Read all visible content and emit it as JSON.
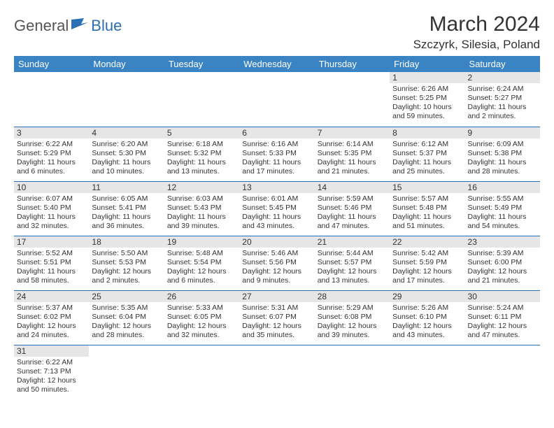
{
  "logo": {
    "part1": "General",
    "part2": "Blue"
  },
  "title": "March 2024",
  "location": "Szczyrk, Silesia, Poland",
  "colors": {
    "header_bg": "#3b84c4",
    "header_fg": "#ffffff",
    "daynum_bg": "#e6e6e6",
    "border": "#2b6fb5",
    "logo_accent": "#2b6fb5"
  },
  "weekdays": [
    "Sunday",
    "Monday",
    "Tuesday",
    "Wednesday",
    "Thursday",
    "Friday",
    "Saturday"
  ],
  "first_weekday_index": 5,
  "days": [
    {
      "n": 1,
      "sunrise": "6:26 AM",
      "sunset": "5:25 PM",
      "daylight": "10 hours and 59 minutes."
    },
    {
      "n": 2,
      "sunrise": "6:24 AM",
      "sunset": "5:27 PM",
      "daylight": "11 hours and 2 minutes."
    },
    {
      "n": 3,
      "sunrise": "6:22 AM",
      "sunset": "5:29 PM",
      "daylight": "11 hours and 6 minutes."
    },
    {
      "n": 4,
      "sunrise": "6:20 AM",
      "sunset": "5:30 PM",
      "daylight": "11 hours and 10 minutes."
    },
    {
      "n": 5,
      "sunrise": "6:18 AM",
      "sunset": "5:32 PM",
      "daylight": "11 hours and 13 minutes."
    },
    {
      "n": 6,
      "sunrise": "6:16 AM",
      "sunset": "5:33 PM",
      "daylight": "11 hours and 17 minutes."
    },
    {
      "n": 7,
      "sunrise": "6:14 AM",
      "sunset": "5:35 PM",
      "daylight": "11 hours and 21 minutes."
    },
    {
      "n": 8,
      "sunrise": "6:12 AM",
      "sunset": "5:37 PM",
      "daylight": "11 hours and 25 minutes."
    },
    {
      "n": 9,
      "sunrise": "6:09 AM",
      "sunset": "5:38 PM",
      "daylight": "11 hours and 28 minutes."
    },
    {
      "n": 10,
      "sunrise": "6:07 AM",
      "sunset": "5:40 PM",
      "daylight": "11 hours and 32 minutes."
    },
    {
      "n": 11,
      "sunrise": "6:05 AM",
      "sunset": "5:41 PM",
      "daylight": "11 hours and 36 minutes."
    },
    {
      "n": 12,
      "sunrise": "6:03 AM",
      "sunset": "5:43 PM",
      "daylight": "11 hours and 39 minutes."
    },
    {
      "n": 13,
      "sunrise": "6:01 AM",
      "sunset": "5:45 PM",
      "daylight": "11 hours and 43 minutes."
    },
    {
      "n": 14,
      "sunrise": "5:59 AM",
      "sunset": "5:46 PM",
      "daylight": "11 hours and 47 minutes."
    },
    {
      "n": 15,
      "sunrise": "5:57 AM",
      "sunset": "5:48 PM",
      "daylight": "11 hours and 51 minutes."
    },
    {
      "n": 16,
      "sunrise": "5:55 AM",
      "sunset": "5:49 PM",
      "daylight": "11 hours and 54 minutes."
    },
    {
      "n": 17,
      "sunrise": "5:52 AM",
      "sunset": "5:51 PM",
      "daylight": "11 hours and 58 minutes."
    },
    {
      "n": 18,
      "sunrise": "5:50 AM",
      "sunset": "5:53 PM",
      "daylight": "12 hours and 2 minutes."
    },
    {
      "n": 19,
      "sunrise": "5:48 AM",
      "sunset": "5:54 PM",
      "daylight": "12 hours and 6 minutes."
    },
    {
      "n": 20,
      "sunrise": "5:46 AM",
      "sunset": "5:56 PM",
      "daylight": "12 hours and 9 minutes."
    },
    {
      "n": 21,
      "sunrise": "5:44 AM",
      "sunset": "5:57 PM",
      "daylight": "12 hours and 13 minutes."
    },
    {
      "n": 22,
      "sunrise": "5:42 AM",
      "sunset": "5:59 PM",
      "daylight": "12 hours and 17 minutes."
    },
    {
      "n": 23,
      "sunrise": "5:39 AM",
      "sunset": "6:00 PM",
      "daylight": "12 hours and 21 minutes."
    },
    {
      "n": 24,
      "sunrise": "5:37 AM",
      "sunset": "6:02 PM",
      "daylight": "12 hours and 24 minutes."
    },
    {
      "n": 25,
      "sunrise": "5:35 AM",
      "sunset": "6:04 PM",
      "daylight": "12 hours and 28 minutes."
    },
    {
      "n": 26,
      "sunrise": "5:33 AM",
      "sunset": "6:05 PM",
      "daylight": "12 hours and 32 minutes."
    },
    {
      "n": 27,
      "sunrise": "5:31 AM",
      "sunset": "6:07 PM",
      "daylight": "12 hours and 35 minutes."
    },
    {
      "n": 28,
      "sunrise": "5:29 AM",
      "sunset": "6:08 PM",
      "daylight": "12 hours and 39 minutes."
    },
    {
      "n": 29,
      "sunrise": "5:26 AM",
      "sunset": "6:10 PM",
      "daylight": "12 hours and 43 minutes."
    },
    {
      "n": 30,
      "sunrise": "5:24 AM",
      "sunset": "6:11 PM",
      "daylight": "12 hours and 47 minutes."
    },
    {
      "n": 31,
      "sunrise": "6:22 AM",
      "sunset": "7:13 PM",
      "daylight": "12 hours and 50 minutes."
    }
  ],
  "labels": {
    "sunrise": "Sunrise:",
    "sunset": "Sunset:",
    "daylight": "Daylight:"
  }
}
